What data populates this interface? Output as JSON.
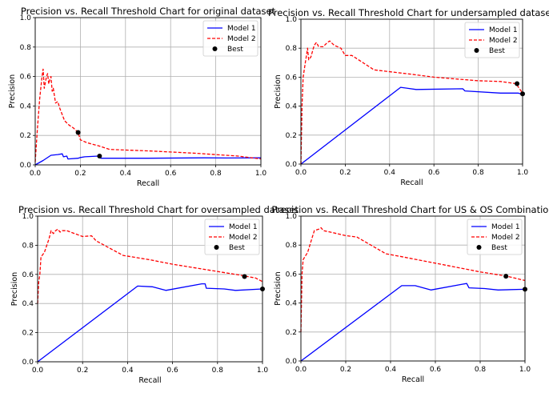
{
  "chart_data": [
    {
      "type": "line",
      "title": "Precision vs. Recall Threshold Chart for original dataset",
      "xlabel": "Recall",
      "ylabel": "Precision",
      "xlim": [
        0,
        1
      ],
      "ylim": [
        0,
        1
      ],
      "xticks": [
        "0.0",
        "0.2",
        "0.4",
        "0.6",
        "0.8",
        "1.0"
      ],
      "yticks": [
        "0.0",
        "0.2",
        "0.4",
        "0.6",
        "0.8",
        "1.0"
      ],
      "grid": true,
      "legend_position": "top-right",
      "series": [
        {
          "name": "Model 1",
          "color": "#0000ff",
          "style": "solid",
          "points": [
            [
              0.0,
              0.0
            ],
            [
              0.035,
              0.03
            ],
            [
              0.07,
              0.065
            ],
            [
              0.1,
              0.07
            ],
            [
              0.12,
              0.075
            ],
            [
              0.125,
              0.055
            ],
            [
              0.14,
              0.06
            ],
            [
              0.145,
              0.04
            ],
            [
              0.19,
              0.045
            ],
            [
              0.2,
              0.05
            ],
            [
              0.22,
              0.055
            ],
            [
              0.28,
              0.06
            ],
            [
              0.29,
              0.045
            ],
            [
              0.5,
              0.045
            ],
            [
              0.75,
              0.048
            ],
            [
              0.85,
              0.047
            ],
            [
              1.0,
              0.048
            ]
          ]
        },
        {
          "name": "Model 2",
          "color": "#ff0000",
          "style": "dashed",
          "points": [
            [
              0.0,
              0.02
            ],
            [
              0.01,
              0.25
            ],
            [
              0.02,
              0.45
            ],
            [
              0.03,
              0.6
            ],
            [
              0.035,
              0.65
            ],
            [
              0.04,
              0.52
            ],
            [
              0.05,
              0.6
            ],
            [
              0.055,
              0.62
            ],
            [
              0.06,
              0.55
            ],
            [
              0.065,
              0.58
            ],
            [
              0.07,
              0.6
            ],
            [
              0.075,
              0.5
            ],
            [
              0.08,
              0.52
            ],
            [
              0.09,
              0.42
            ],
            [
              0.1,
              0.43
            ],
            [
              0.11,
              0.38
            ],
            [
              0.13,
              0.3
            ],
            [
              0.15,
              0.27
            ],
            [
              0.17,
              0.25
            ],
            [
              0.19,
              0.22
            ],
            [
              0.2,
              0.17
            ],
            [
              0.23,
              0.15
            ],
            [
              0.28,
              0.13
            ],
            [
              0.33,
              0.105
            ],
            [
              0.5,
              0.095
            ],
            [
              0.7,
              0.08
            ],
            [
              0.9,
              0.06
            ],
            [
              1.0,
              0.04
            ]
          ]
        }
      ],
      "best_points": [
        {
          "series": "Model 2",
          "x": 0.19,
          "y": 0.22
        },
        {
          "series": "Model 1",
          "x": 0.285,
          "y": 0.06
        }
      ],
      "legend": [
        "Model 1",
        "Model 2",
        "Best"
      ]
    },
    {
      "type": "line",
      "title": "Precision vs. Recall Threshold Chart for undersampled dataset",
      "xlabel": "Recall",
      "ylabel": "Precision",
      "xlim": [
        0,
        1
      ],
      "ylim": [
        0,
        1
      ],
      "xticks": [
        "0.0",
        "0.2",
        "0.4",
        "0.6",
        "0.8",
        "1.0"
      ],
      "yticks": [
        "0.0",
        "0.2",
        "0.4",
        "0.6",
        "0.8",
        "1.0"
      ],
      "grid": true,
      "legend_position": "top-right",
      "series": [
        {
          "name": "Model 1",
          "color": "#0000ff",
          "style": "solid",
          "points": [
            [
              0.0,
              0.0
            ],
            [
              0.45,
              0.53
            ],
            [
              0.52,
              0.515
            ],
            [
              0.73,
              0.52
            ],
            [
              0.74,
              0.505
            ],
            [
              0.9,
              0.49
            ],
            [
              0.98,
              0.49
            ],
            [
              1.0,
              0.48
            ]
          ]
        },
        {
          "name": "Model 2",
          "color": "#ff0000",
          "style": "dashed",
          "points": [
            [
              0.0,
              0.0
            ],
            [
              0.005,
              0.4
            ],
            [
              0.01,
              0.6
            ],
            [
              0.02,
              0.7
            ],
            [
              0.025,
              0.75
            ],
            [
              0.03,
              0.8
            ],
            [
              0.035,
              0.72
            ],
            [
              0.045,
              0.74
            ],
            [
              0.06,
              0.82
            ],
            [
              0.07,
              0.84
            ],
            [
              0.08,
              0.81
            ],
            [
              0.1,
              0.81
            ],
            [
              0.12,
              0.84
            ],
            [
              0.13,
              0.85
            ],
            [
              0.15,
              0.82
            ],
            [
              0.18,
              0.8
            ],
            [
              0.2,
              0.75
            ],
            [
              0.23,
              0.75
            ],
            [
              0.33,
              0.65
            ],
            [
              0.5,
              0.62
            ],
            [
              0.6,
              0.6
            ],
            [
              0.8,
              0.575
            ],
            [
              0.9,
              0.57
            ],
            [
              0.97,
              0.555
            ],
            [
              1.0,
              0.49
            ]
          ]
        }
      ],
      "best_points": [
        {
          "series": "Model 2",
          "x": 0.975,
          "y": 0.555
        },
        {
          "series": "Model 1",
          "x": 1.0,
          "y": 0.485
        }
      ],
      "legend": [
        "Model 1",
        "Model 2",
        "Best"
      ]
    },
    {
      "type": "line",
      "title": "Precision vs. Recall Threshold Chart for oversampled dataset",
      "xlabel": "Recall",
      "ylabel": "Precision",
      "xlim": [
        0,
        1
      ],
      "ylim": [
        0,
        1
      ],
      "xticks": [
        "0.0",
        "0.2",
        "0.4",
        "0.6",
        "0.8",
        "1.0"
      ],
      "yticks": [
        "0.0",
        "0.2",
        "0.4",
        "0.6",
        "0.8",
        "1.0"
      ],
      "grid": true,
      "legend_position": "top-right",
      "series": [
        {
          "name": "Model 1",
          "color": "#0000ff",
          "style": "solid",
          "points": [
            [
              0.0,
              0.0
            ],
            [
              0.445,
              0.52
            ],
            [
              0.51,
              0.515
            ],
            [
              0.57,
              0.49
            ],
            [
              0.73,
              0.535
            ],
            [
              0.745,
              0.535
            ],
            [
              0.75,
              0.505
            ],
            [
              0.83,
              0.5
            ],
            [
              0.88,
              0.49
            ],
            [
              1.0,
              0.5
            ]
          ]
        },
        {
          "name": "Model 2",
          "color": "#ff0000",
          "style": "dashed",
          "points": [
            [
              0.0,
              0.4
            ],
            [
              0.005,
              0.55
            ],
            [
              0.01,
              0.6
            ],
            [
              0.015,
              0.72
            ],
            [
              0.03,
              0.75
            ],
            [
              0.05,
              0.84
            ],
            [
              0.06,
              0.9
            ],
            [
              0.07,
              0.88
            ],
            [
              0.08,
              0.9
            ],
            [
              0.09,
              0.91
            ],
            [
              0.1,
              0.89
            ],
            [
              0.11,
              0.9
            ],
            [
              0.13,
              0.9
            ],
            [
              0.2,
              0.86
            ],
            [
              0.24,
              0.865
            ],
            [
              0.26,
              0.83
            ],
            [
              0.38,
              0.73
            ],
            [
              0.5,
              0.7
            ],
            [
              0.6,
              0.67
            ],
            [
              0.8,
              0.62
            ],
            [
              0.9,
              0.595
            ],
            [
              0.97,
              0.575
            ],
            [
              1.0,
              0.55
            ]
          ]
        }
      ],
      "best_points": [
        {
          "series": "Model 2",
          "x": 0.92,
          "y": 0.585
        },
        {
          "series": "Model 1",
          "x": 1.0,
          "y": 0.5
        }
      ],
      "legend": [
        "Model 1",
        "Model 2",
        "Best"
      ]
    },
    {
      "type": "line",
      "title": "Precision vs. Recall Threshold Chart for US & OS Combination",
      "xlabel": "Recall",
      "ylabel": "Precision",
      "xlim": [
        0,
        1
      ],
      "ylim": [
        0,
        1
      ],
      "xticks": [
        "0.0",
        "0.2",
        "0.4",
        "0.6",
        "0.8",
        "1.0"
      ],
      "yticks": [
        "0.0",
        "0.2",
        "0.4",
        "0.6",
        "0.8",
        "1.0"
      ],
      "grid": true,
      "legend_position": "top-right",
      "series": [
        {
          "name": "Model 1",
          "color": "#0000ff",
          "style": "solid",
          "points": [
            [
              0.0,
              0.0
            ],
            [
              0.45,
              0.52
            ],
            [
              0.51,
              0.52
            ],
            [
              0.58,
              0.49
            ],
            [
              0.72,
              0.53
            ],
            [
              0.74,
              0.535
            ],
            [
              0.75,
              0.505
            ],
            [
              0.82,
              0.5
            ],
            [
              0.88,
              0.49
            ],
            [
              1.0,
              0.495
            ]
          ]
        },
        {
          "name": "Model 2",
          "color": "#ff0000",
          "style": "dashed",
          "points": [
            [
              0.0,
              0.2
            ],
            [
              0.005,
              0.6
            ],
            [
              0.01,
              0.7
            ],
            [
              0.03,
              0.75
            ],
            [
              0.05,
              0.85
            ],
            [
              0.06,
              0.9
            ],
            [
              0.08,
              0.91
            ],
            [
              0.09,
              0.92
            ],
            [
              0.1,
              0.9
            ],
            [
              0.13,
              0.89
            ],
            [
              0.2,
              0.865
            ],
            [
              0.25,
              0.855
            ],
            [
              0.38,
              0.74
            ],
            [
              0.45,
              0.72
            ],
            [
              0.6,
              0.675
            ],
            [
              0.8,
              0.615
            ],
            [
              0.92,
              0.585
            ],
            [
              1.0,
              0.555
            ]
          ]
        }
      ],
      "best_points": [
        {
          "series": "Model 2",
          "x": 0.915,
          "y": 0.585
        },
        {
          "series": "Model 1",
          "x": 1.0,
          "y": 0.495
        }
      ],
      "legend": [
        "Model 1",
        "Model 2",
        "Best"
      ]
    }
  ]
}
